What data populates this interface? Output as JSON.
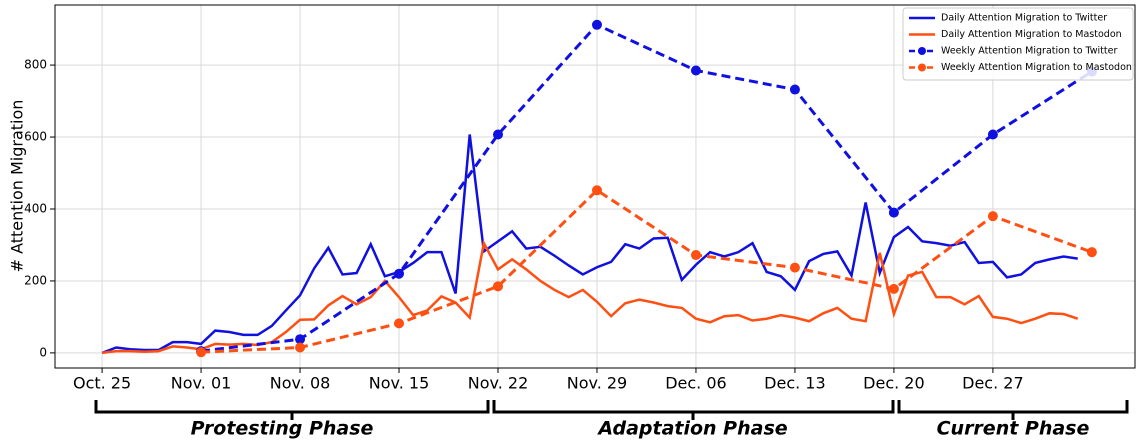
{
  "chart_data": {
    "type": "line",
    "ylabel": "# Attention Migration",
    "xlim": [
      -3.33,
      73.05
    ],
    "ylim": [
      -42,
      967
    ],
    "xticks": [
      {
        "value": 0,
        "label": "Oct. 25"
      },
      {
        "value": 7,
        "label": "Nov. 01"
      },
      {
        "value": 14,
        "label": "Nov. 08"
      },
      {
        "value": 21,
        "label": "Nov. 15"
      },
      {
        "value": 28,
        "label": "Nov. 22"
      },
      {
        "value": 35,
        "label": "Nov. 29"
      },
      {
        "value": 42,
        "label": "Dec. 06"
      },
      {
        "value": 49,
        "label": "Dec. 13"
      },
      {
        "value": 56,
        "label": "Dec. 20"
      },
      {
        "value": 63,
        "label": "Dec. 27"
      }
    ],
    "yticks": [
      0,
      200,
      400,
      600,
      800
    ],
    "grid": true,
    "legend": "upper right",
    "series": [
      {
        "name": "Daily Attention Migration to Twitter",
        "color": "#1010e0",
        "style": "solid",
        "marker": false,
        "x": [
          0,
          1,
          2,
          3,
          4,
          5,
          6,
          7,
          8,
          9,
          10,
          11,
          12,
          13,
          14,
          15,
          16,
          17,
          18,
          19,
          20,
          21,
          22,
          23,
          24,
          25,
          26,
          27,
          28,
          29,
          30,
          31,
          32,
          33,
          34,
          35,
          36,
          37,
          38,
          39,
          40,
          41,
          42,
          43,
          44,
          45,
          46,
          47,
          48,
          49,
          50,
          51,
          52,
          53,
          54,
          55,
          56,
          57,
          58,
          59,
          60,
          61,
          62,
          63,
          64,
          65,
          66,
          67,
          68,
          69
        ],
        "values": [
          0,
          15,
          10,
          8,
          8,
          30,
          30,
          25,
          62,
          58,
          50,
          50,
          75,
          118,
          160,
          235,
          292,
          218,
          222,
          302,
          213,
          225,
          250,
          280,
          280,
          165,
          607,
          282,
          310,
          338,
          290,
          295,
          270,
          243,
          218,
          238,
          253,
          302,
          290,
          318,
          320,
          203,
          245,
          280,
          268,
          280,
          305,
          225,
          213,
          175,
          255,
          275,
          282,
          215,
          418,
          222,
          322,
          350,
          310,
          305,
          298,
          308,
          250,
          253,
          210,
          218,
          250,
          260,
          268,
          262
        ]
      },
      {
        "name": "Daily Attention Migration to Mastodon",
        "color": "#ff4f12",
        "style": "solid",
        "marker": false,
        "x": [
          0,
          1,
          2,
          3,
          4,
          5,
          6,
          7,
          8,
          9,
          10,
          11,
          12,
          13,
          14,
          15,
          16,
          17,
          18,
          19,
          20,
          21,
          22,
          23,
          24,
          25,
          26,
          27,
          28,
          29,
          30,
          31,
          32,
          33,
          34,
          35,
          36,
          37,
          38,
          39,
          40,
          41,
          42,
          43,
          44,
          45,
          46,
          47,
          48,
          49,
          50,
          51,
          52,
          53,
          54,
          55,
          56,
          57,
          58,
          59,
          60,
          61,
          62,
          63,
          64,
          65,
          66,
          67,
          68,
          69
        ],
        "values": [
          0,
          5,
          5,
          3,
          5,
          18,
          15,
          10,
          25,
          23,
          25,
          22,
          30,
          58,
          92,
          93,
          132,
          158,
          135,
          155,
          200,
          155,
          105,
          118,
          157,
          140,
          98,
          305,
          232,
          260,
          232,
          200,
          175,
          155,
          175,
          142,
          102,
          138,
          148,
          140,
          130,
          125,
          95,
          85,
          102,
          105,
          90,
          95,
          105,
          98,
          88,
          110,
          125,
          95,
          88,
          278,
          108,
          215,
          225,
          155,
          155,
          135,
          158,
          100,
          95,
          83,
          95,
          110,
          108,
          95
        ]
      },
      {
        "name": "Weekly Attention Migration to Twitter",
        "color": "#1010e0",
        "style": "dashed",
        "marker": true,
        "x": [
          7,
          14,
          21,
          28,
          35,
          42,
          49,
          56,
          63,
          70
        ],
        "values": [
          5,
          38,
          220,
          607,
          912,
          785,
          732,
          390,
          607,
          782
        ]
      },
      {
        "name": "Weekly Attention Migration to Mastodon",
        "color": "#ff4f12",
        "style": "dashed",
        "marker": true,
        "x": [
          7,
          14,
          21,
          28,
          35,
          42,
          49,
          56,
          63,
          70
        ],
        "values": [
          2,
          15,
          82,
          185,
          452,
          272,
          237,
          178,
          380,
          280
        ]
      }
    ],
    "phases": [
      "Protesting Phase",
      "Adaptation Phase",
      "Current Phase"
    ]
  }
}
